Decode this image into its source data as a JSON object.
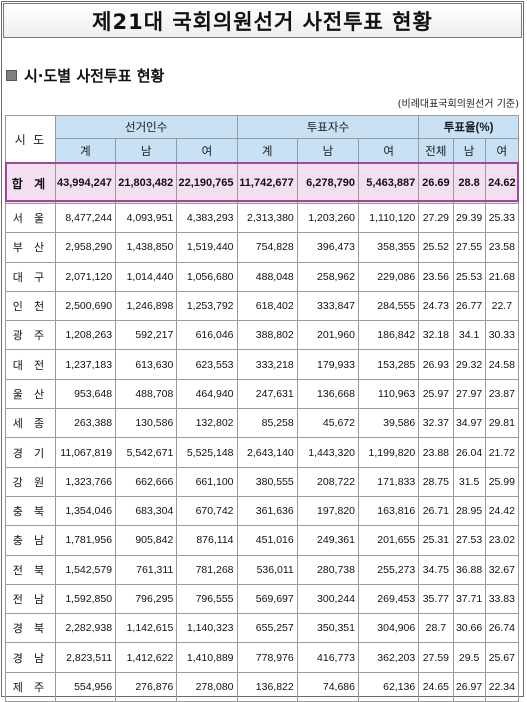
{
  "title": "제21대 국회의원선거 사전투표 현황",
  "section_title": "시·도별 사전투표 현황",
  "note": "(비례대표국회의원선거 기준)",
  "table": {
    "region_header": "시 도",
    "group_headers": [
      "선거인수",
      "투표자수",
      "투표율(%)"
    ],
    "sub_headers": [
      "계",
      "남",
      "여",
      "계",
      "남",
      "여",
      "전체",
      "남",
      "여"
    ],
    "total": {
      "name": "합 계",
      "values": [
        "43,994,247",
        "21,803,482",
        "22,190,765",
        "11,742,677",
        "6,278,790",
        "5,463,887",
        "26.69",
        "28.8",
        "24.62"
      ]
    },
    "rows": [
      {
        "name": "서 울",
        "values": [
          "8,477,244",
          "4,093,951",
          "4,383,293",
          "2,313,380",
          "1,203,260",
          "1,110,120",
          "27.29",
          "29.39",
          "25.33"
        ]
      },
      {
        "name": "부 산",
        "values": [
          "2,958,290",
          "1,438,850",
          "1,519,440",
          "754,828",
          "396,473",
          "358,355",
          "25.52",
          "27.55",
          "23.58"
        ]
      },
      {
        "name": "대 구",
        "values": [
          "2,071,120",
          "1,014,440",
          "1,056,680",
          "488,048",
          "258,962",
          "229,086",
          "23.56",
          "25.53",
          "21.68"
        ]
      },
      {
        "name": "인 천",
        "values": [
          "2,500,690",
          "1,246,898",
          "1,253,792",
          "618,402",
          "333,847",
          "284,555",
          "24.73",
          "26.77",
          "22.7"
        ]
      },
      {
        "name": "광 주",
        "values": [
          "1,208,263",
          "592,217",
          "616,046",
          "388,802",
          "201,960",
          "186,842",
          "32.18",
          "34.1",
          "30.33"
        ]
      },
      {
        "name": "대 전",
        "values": [
          "1,237,183",
          "613,630",
          "623,553",
          "333,218",
          "179,933",
          "153,285",
          "26.93",
          "29.32",
          "24.58"
        ]
      },
      {
        "name": "울 산",
        "values": [
          "953,648",
          "488,708",
          "464,940",
          "247,631",
          "136,668",
          "110,963",
          "25.97",
          "27.97",
          "23.87"
        ]
      },
      {
        "name": "세 종",
        "values": [
          "263,388",
          "130,586",
          "132,802",
          "85,258",
          "45,672",
          "39,586",
          "32.37",
          "34.97",
          "29.81"
        ]
      },
      {
        "name": "경 기",
        "values": [
          "11,067,819",
          "5,542,671",
          "5,525,148",
          "2,643,140",
          "1,443,320",
          "1,199,820",
          "23.88",
          "26.04",
          "21.72"
        ]
      },
      {
        "name": "강 원",
        "values": [
          "1,323,766",
          "662,666",
          "661,100",
          "380,555",
          "208,722",
          "171,833",
          "28.75",
          "31.5",
          "25.99"
        ]
      },
      {
        "name": "충 북",
        "values": [
          "1,354,046",
          "683,304",
          "670,742",
          "361,636",
          "197,820",
          "163,816",
          "26.71",
          "28.95",
          "24.42"
        ]
      },
      {
        "name": "충 남",
        "values": [
          "1,781,956",
          "905,842",
          "876,114",
          "451,016",
          "249,361",
          "201,655",
          "25.31",
          "27.53",
          "23.02"
        ]
      },
      {
        "name": "전 북",
        "values": [
          "1,542,579",
          "761,311",
          "781,268",
          "536,011",
          "280,738",
          "255,273",
          "34.75",
          "36.88",
          "32.67"
        ]
      },
      {
        "name": "전 남",
        "values": [
          "1,592,850",
          "796,295",
          "796,555",
          "569,697",
          "300,244",
          "269,453",
          "35.77",
          "37.71",
          "33.83"
        ]
      },
      {
        "name": "경 북",
        "values": [
          "2,282,938",
          "1,142,615",
          "1,140,323",
          "655,257",
          "350,351",
          "304,906",
          "28.7",
          "30.66",
          "26.74"
        ]
      },
      {
        "name": "경 남",
        "values": [
          "2,823,511",
          "1,412,622",
          "1,410,889",
          "778,976",
          "416,773",
          "362,203",
          "27.59",
          "29.5",
          "25.67"
        ]
      },
      {
        "name": "제 주",
        "values": [
          "554,956",
          "276,876",
          "278,080",
          "136,822",
          "74,686",
          "62,136",
          "24.65",
          "26.97",
          "22.34"
        ]
      }
    ]
  }
}
